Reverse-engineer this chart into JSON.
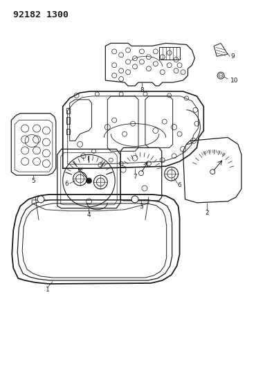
{
  "title": "92182 1300",
  "bg_color": "#ffffff",
  "line_color": "#1a1a1a",
  "fig_width": 3.96,
  "fig_height": 5.33,
  "dpi": 100,
  "label_fontsize": 6.5
}
